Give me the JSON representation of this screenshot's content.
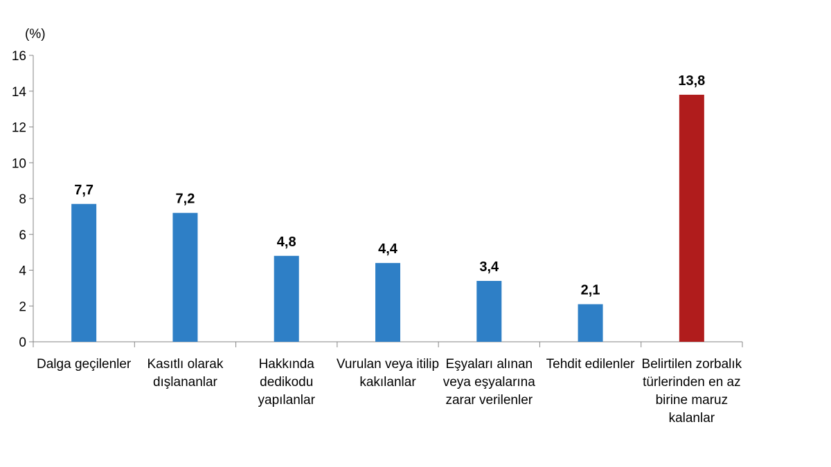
{
  "chart_data": {
    "type": "bar",
    "unit_label": "(%)",
    "categories": [
      [
        "Dalga geçilenler"
      ],
      [
        "Kasıtlı olarak",
        "dışlananlar"
      ],
      [
        "Hakkında",
        "dedikodu",
        "yapılanlar"
      ],
      [
        "Vurulan veya itilip",
        "kakılanlar"
      ],
      [
        "Eşyaları alınan",
        "veya eşyalarına",
        "zarar verilenler"
      ],
      [
        "Tehdit edilenler"
      ],
      [
        "Belirtilen zorbalık",
        "türlerinden en az",
        "birine maruz",
        "kalanlar"
      ]
    ],
    "values": [
      7.7,
      7.2,
      4.8,
      4.4,
      3.4,
      2.1,
      13.8
    ],
    "value_labels": [
      "7,7",
      "7,2",
      "4,8",
      "4,4",
      "3,4",
      "2,1",
      "13,8"
    ],
    "ylim": [
      0,
      16
    ],
    "yticks": [
      0,
      2,
      4,
      6,
      8,
      10,
      12,
      14,
      16
    ],
    "colors": [
      "#2e7fc6",
      "#2e7fc6",
      "#2e7fc6",
      "#2e7fc6",
      "#2e7fc6",
      "#2e7fc6",
      "#b01c1c"
    ],
    "axis_color": "#868686",
    "grid": false,
    "legend": "none"
  }
}
